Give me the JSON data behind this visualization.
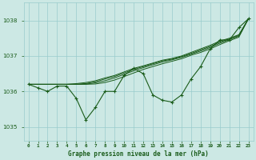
{
  "title": "Graphe pression niveau de la mer (hPa)",
  "background_color": "#cce8e4",
  "grid_color": "#99cccc",
  "line_color": "#1a5c1a",
  "xlim": [
    -0.5,
    23.5
  ],
  "ylim": [
    1034.6,
    1038.5
  ],
  "yticks": [
    1035,
    1036,
    1037,
    1038
  ],
  "xtick_labels": [
    "0",
    "1",
    "2",
    "3",
    "4",
    "5",
    "6",
    "7",
    "8",
    "9",
    "10",
    "11",
    "12",
    "13",
    "14",
    "15",
    "16",
    "17",
    "18",
    "19",
    "20",
    "21",
    "22",
    "23"
  ],
  "main_data": [
    1036.2,
    1036.1,
    1036.0,
    1036.15,
    1036.15,
    1035.8,
    1035.2,
    1035.55,
    1036.0,
    1036.0,
    1036.45,
    1036.65,
    1036.5,
    1035.9,
    1035.75,
    1035.7,
    1035.9,
    1036.35,
    1036.7,
    1037.2,
    1037.45,
    1037.45,
    1037.8,
    1038.05
  ],
  "fan_lines": [
    [
      1036.2,
      1036.2,
      1036.2,
      1036.2,
      1036.2,
      1036.22,
      1036.25,
      1036.3,
      1036.38,
      1036.45,
      1036.55,
      1036.65,
      1036.72,
      1036.8,
      1036.88,
      1036.93,
      1037.0,
      1037.1,
      1037.2,
      1037.3,
      1037.42,
      1037.5,
      1037.6,
      1038.05
    ],
    [
      1036.2,
      1036.2,
      1036.2,
      1036.2,
      1036.2,
      1036.2,
      1036.22,
      1036.27,
      1036.35,
      1036.42,
      1036.52,
      1036.62,
      1036.7,
      1036.78,
      1036.86,
      1036.91,
      1036.98,
      1037.07,
      1037.17,
      1037.27,
      1037.39,
      1037.48,
      1037.58,
      1038.05
    ],
    [
      1036.2,
      1036.2,
      1036.2,
      1036.2,
      1036.2,
      1036.2,
      1036.21,
      1036.24,
      1036.3,
      1036.38,
      1036.48,
      1036.58,
      1036.67,
      1036.75,
      1036.83,
      1036.89,
      1036.96,
      1037.05,
      1037.14,
      1037.24,
      1037.36,
      1037.46,
      1037.56,
      1038.05
    ],
    [
      1036.2,
      1036.2,
      1036.2,
      1036.2,
      1036.2,
      1036.2,
      1036.2,
      1036.21,
      1036.25,
      1036.32,
      1036.42,
      1036.52,
      1036.62,
      1036.7,
      1036.78,
      1036.85,
      1036.92,
      1037.02,
      1037.1,
      1037.2,
      1037.32,
      1037.43,
      1037.53,
      1038.05
    ]
  ]
}
